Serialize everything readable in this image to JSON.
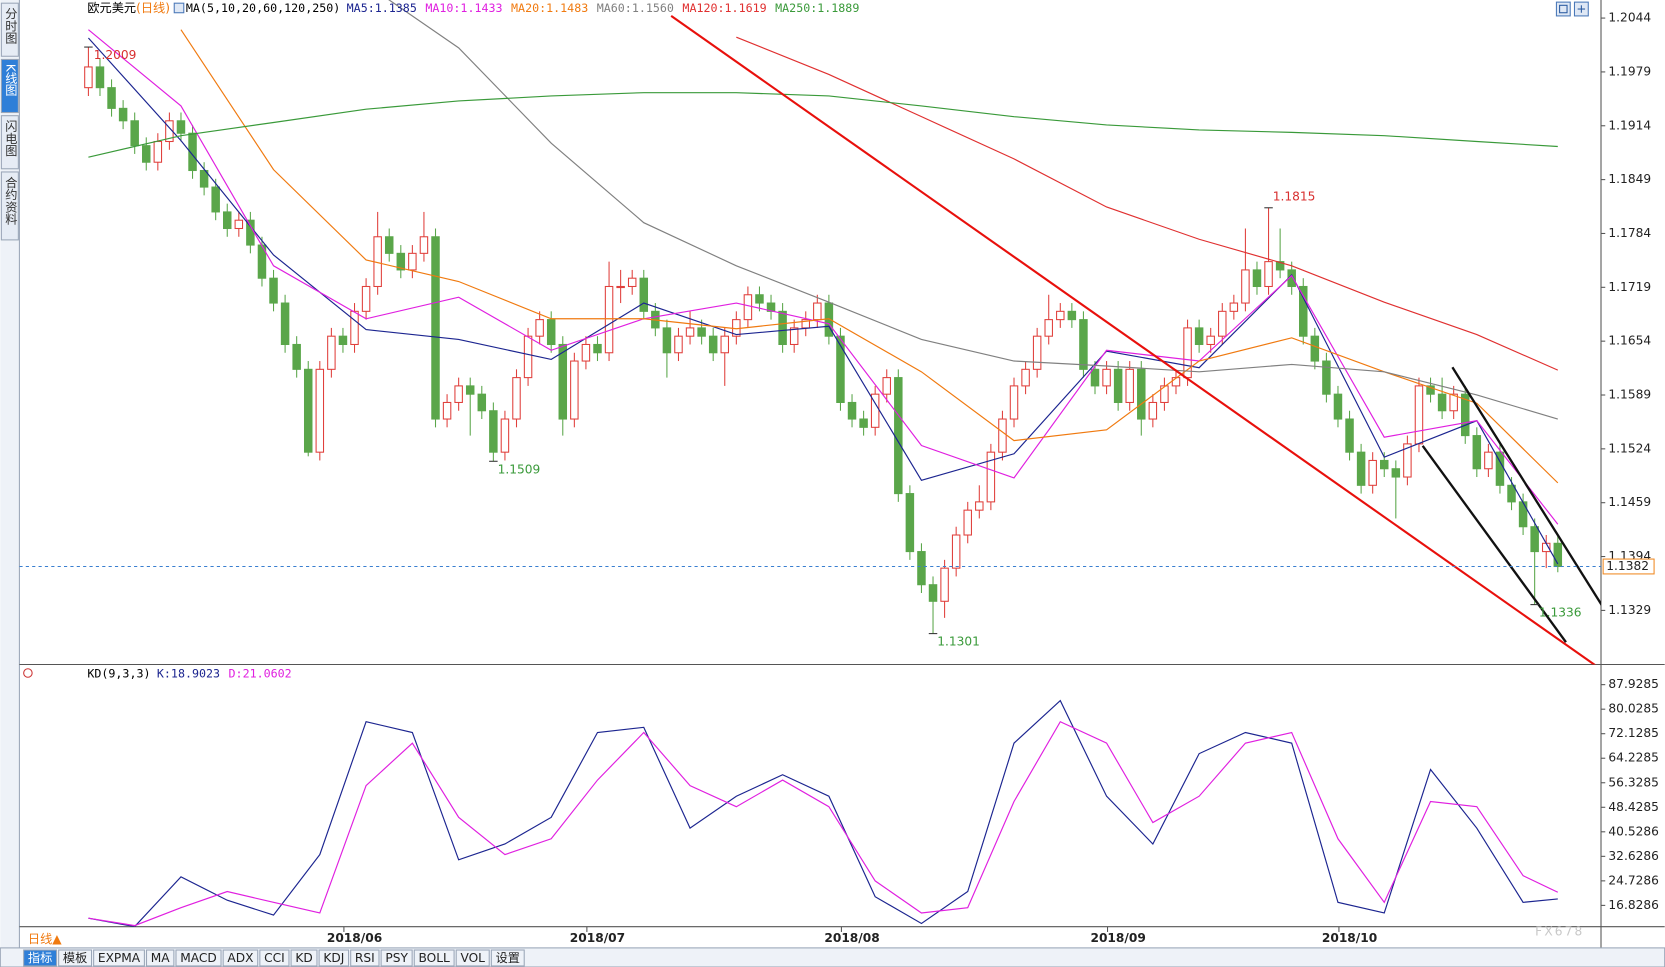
{
  "chart_data": {
    "type": "candlestick",
    "title": "欧元美元",
    "period": "(日线)",
    "ma_label": "MA(5,10,20,60,120,250)",
    "up_color": "#e0403c",
    "down_color": "#5aa64a",
    "ylim": [
      1.1265,
      1.2053
    ],
    "yticks": [
      1.2044,
      1.1979,
      1.1914,
      1.1849,
      1.1784,
      1.1719,
      1.1654,
      1.1589,
      1.1524,
      1.1459,
      1.1394,
      1.1329
    ],
    "categories": [
      null,
      null,
      null,
      null,
      null,
      null,
      null,
      null,
      null,
      null,
      null,
      null,
      null,
      null,
      null,
      null,
      null,
      null,
      null,
      null,
      null,
      null,
      null,
      "2018/06",
      null,
      null,
      null,
      null,
      null,
      null,
      null,
      null,
      null,
      null,
      null,
      null,
      null,
      null,
      null,
      null,
      null,
      null,
      null,
      null,
      "2018/07",
      null,
      null,
      null,
      null,
      null,
      null,
      null,
      null,
      null,
      null,
      null,
      null,
      null,
      null,
      null,
      null,
      null,
      null,
      null,
      null,
      null,
      "2018/08",
      null,
      null,
      null,
      null,
      null,
      null,
      null,
      null,
      null,
      null,
      null,
      null,
      null,
      null,
      null,
      null,
      null,
      null,
      null,
      null,
      null,
      null,
      "2018/09",
      null,
      null,
      null,
      null,
      null,
      null,
      null,
      null,
      null,
      null,
      null,
      null,
      null,
      null,
      null,
      null,
      null,
      null,
      null,
      "2018/10",
      null,
      null,
      null,
      null,
      null,
      null,
      null,
      null,
      null,
      null,
      null,
      null,
      null,
      null,
      null,
      null,
      null,
      null
    ],
    "open": [
      1.196,
      1.1985,
      1.196,
      1.1935,
      1.192,
      1.189,
      1.187,
      1.1895,
      1.192,
      1.1905,
      1.186,
      1.184,
      1.181,
      1.179,
      1.18,
      1.177,
      1.173,
      1.17,
      1.165,
      1.162,
      1.152,
      1.162,
      1.166,
      1.165,
      1.169,
      1.172,
      1.178,
      1.176,
      1.174,
      1.176,
      1.178,
      1.156,
      1.158,
      1.16,
      1.159,
      1.157,
      1.152,
      1.156,
      1.161,
      1.166,
      1.168,
      1.165,
      1.156,
      1.163,
      1.165,
      1.164,
      1.172,
      1.172,
      1.173,
      1.169,
      1.167,
      1.164,
      1.166,
      1.167,
      1.166,
      1.164,
      1.166,
      1.168,
      1.171,
      1.17,
      1.169,
      1.165,
      1.167,
      1.168,
      1.17,
      1.166,
      1.158,
      1.156,
      1.155,
      1.159,
      1.161,
      1.147,
      1.14,
      1.136,
      1.134,
      1.138,
      1.142,
      1.145,
      1.146,
      1.152,
      1.156,
      1.16,
      1.162,
      1.166,
      1.168,
      1.169,
      1.168,
      1.162,
      1.16,
      1.162,
      1.158,
      1.162,
      1.156,
      1.158,
      1.16,
      1.161,
      1.167,
      1.165,
      1.166,
      1.169,
      1.17,
      1.174,
      1.172,
      1.175,
      1.174,
      1.172,
      1.166,
      1.163,
      1.159,
      1.156,
      1.152,
      1.148,
      1.151,
      1.15,
      1.149,
      1.153,
      1.16,
      1.159,
      1.157,
      1.159,
      1.154,
      1.15,
      1.152,
      1.148,
      1.146,
      1.143,
      1.14,
      1.141
    ],
    "high": [
      1.2009,
      1.1995,
      1.197,
      1.1945,
      1.193,
      1.19,
      1.1905,
      1.193,
      1.193,
      1.1915,
      1.187,
      1.185,
      1.182,
      1.181,
      1.181,
      1.178,
      1.174,
      1.171,
      1.166,
      1.163,
      1.163,
      1.167,
      1.167,
      1.17,
      1.173,
      1.181,
      1.179,
      1.177,
      1.177,
      1.181,
      1.179,
      1.159,
      1.161,
      1.161,
      1.16,
      1.158,
      1.157,
      1.162,
      1.167,
      1.169,
      1.169,
      1.166,
      1.164,
      1.166,
      1.166,
      1.175,
      1.174,
      1.174,
      1.174,
      1.17,
      1.168,
      1.167,
      1.169,
      1.168,
      1.167,
      1.167,
      1.169,
      1.172,
      1.172,
      1.171,
      1.17,
      1.168,
      1.169,
      1.171,
      1.171,
      1.167,
      1.159,
      1.157,
      1.16,
      1.162,
      1.162,
      1.148,
      1.141,
      1.137,
      1.139,
      1.143,
      1.146,
      1.148,
      1.153,
      1.157,
      1.161,
      1.163,
      1.167,
      1.171,
      1.17,
      1.17,
      1.169,
      1.163,
      1.163,
      1.163,
      1.163,
      1.163,
      1.159,
      1.161,
      1.162,
      1.168,
      1.168,
      1.167,
      1.17,
      1.171,
      1.179,
      1.175,
      1.1815,
      1.179,
      1.175,
      1.173,
      1.167,
      1.164,
      1.16,
      1.157,
      1.153,
      1.152,
      1.152,
      1.151,
      1.154,
      1.161,
      1.161,
      1.161,
      1.16,
      1.16,
      1.155,
      1.153,
      1.153,
      1.149,
      1.147,
      1.144,
      1.142,
      1.142
    ],
    "low": [
      1.195,
      1.195,
      1.1925,
      1.191,
      1.188,
      1.186,
      1.186,
      1.1885,
      1.1895,
      1.185,
      1.183,
      1.18,
      1.178,
      1.178,
      1.176,
      1.172,
      1.169,
      1.164,
      1.161,
      1.1515,
      1.151,
      1.161,
      1.164,
      1.164,
      1.168,
      1.171,
      1.175,
      1.173,
      1.173,
      1.175,
      1.155,
      1.155,
      1.157,
      1.154,
      1.156,
      1.1509,
      1.151,
      1.155,
      1.16,
      1.165,
      1.164,
      1.154,
      1.155,
      1.162,
      1.163,
      1.163,
      1.17,
      1.171,
      1.168,
      1.166,
      1.161,
      1.163,
      1.165,
      1.165,
      1.163,
      1.16,
      1.165,
      1.167,
      1.169,
      1.168,
      1.164,
      1.164,
      1.166,
      1.167,
      1.165,
      1.157,
      1.155,
      1.154,
      1.154,
      1.158,
      1.146,
      1.139,
      1.135,
      1.1301,
      1.132,
      1.137,
      1.141,
      1.144,
      1.145,
      1.151,
      1.155,
      1.159,
      1.161,
      1.165,
      1.167,
      1.167,
      1.161,
      1.159,
      1.159,
      1.157,
      1.157,
      1.154,
      1.155,
      1.157,
      1.159,
      1.16,
      1.164,
      1.164,
      1.165,
      1.168,
      1.169,
      1.171,
      1.171,
      1.173,
      1.171,
      1.165,
      1.162,
      1.158,
      1.155,
      1.151,
      1.147,
      1.147,
      1.149,
      1.144,
      1.148,
      1.152,
      1.158,
      1.156,
      1.156,
      1.153,
      1.149,
      1.149,
      1.147,
      1.145,
      1.142,
      1.1336,
      1.138,
      1.1375
    ],
    "close": [
      1.1985,
      1.196,
      1.1935,
      1.192,
      1.189,
      1.187,
      1.1895,
      1.192,
      1.1905,
      1.186,
      1.184,
      1.181,
      1.179,
      1.18,
      1.177,
      1.173,
      1.17,
      1.165,
      1.162,
      1.152,
      1.162,
      1.166,
      1.165,
      1.169,
      1.172,
      1.178,
      1.176,
      1.174,
      1.176,
      1.178,
      1.156,
      1.158,
      1.16,
      1.159,
      1.157,
      1.152,
      1.156,
      1.161,
      1.166,
      1.168,
      1.165,
      1.156,
      1.163,
      1.165,
      1.164,
      1.172,
      1.172,
      1.173,
      1.169,
      1.167,
      1.164,
      1.166,
      1.167,
      1.166,
      1.164,
      1.166,
      1.168,
      1.171,
      1.17,
      1.169,
      1.165,
      1.167,
      1.168,
      1.17,
      1.166,
      1.158,
      1.156,
      1.155,
      1.159,
      1.161,
      1.147,
      1.14,
      1.136,
      1.134,
      1.138,
      1.142,
      1.145,
      1.146,
      1.152,
      1.156,
      1.16,
      1.162,
      1.166,
      1.168,
      1.169,
      1.168,
      1.162,
      1.16,
      1.162,
      1.158,
      1.162,
      1.156,
      1.158,
      1.16,
      1.161,
      1.167,
      1.165,
      1.166,
      1.169,
      1.17,
      1.174,
      1.172,
      1.175,
      1.174,
      1.172,
      1.166,
      1.163,
      1.159,
      1.156,
      1.152,
      1.148,
      1.151,
      1.15,
      1.149,
      1.153,
      1.16,
      1.159,
      1.157,
      1.159,
      1.154,
      1.15,
      1.152,
      1.148,
      1.146,
      1.143,
      1.14,
      1.141,
      1.1382
    ],
    "annotations": [
      1.2009,
      1.1509,
      1.1301,
      1.1815,
      1.1336
    ],
    "ma_x": [
      0,
      8,
      16,
      24,
      32,
      40,
      48,
      56,
      64,
      72,
      80,
      88,
      96,
      104,
      112,
      120,
      127
    ],
    "ma_series": [
      {
        "label": "MA5:1.1385",
        "color": "#1c2590",
        "values": [
          1.202,
          1.1896,
          1.1758,
          1.1668,
          1.1656,
          1.1632,
          1.17,
          1.1662,
          1.1672,
          1.1486,
          1.1518,
          1.1642,
          1.1622,
          1.1734,
          1.1514,
          1.1558,
          1.1385
        ]
      },
      {
        "label": "MA10:1.1433",
        "color": "#e020e0",
        "values": [
          1.203,
          1.1938,
          1.1745,
          1.1681,
          1.1707,
          1.1643,
          1.1681,
          1.17,
          1.1675,
          1.1528,
          1.1489,
          1.1643,
          1.163,
          1.1733,
          1.1538,
          1.1558,
          1.1433
        ]
      },
      {
        "label": "MA20:1.1483",
        "color": "#f07a10",
        "values": [
          null,
          1.203,
          1.1861,
          1.1752,
          1.1726,
          1.1681,
          1.1681,
          1.1669,
          1.1681,
          1.1617,
          1.1534,
          1.1547,
          1.163,
          1.1658,
          1.1617,
          1.1579,
          1.1483
        ]
      },
      {
        "label": "MA60:1.1560",
        "color": "#808080",
        "values": [
          null,
          null,
          null,
          1.2085,
          1.2008,
          1.1893,
          1.1797,
          1.1745,
          1.1701,
          1.1656,
          1.163,
          1.1624,
          1.1617,
          1.1626,
          1.1617,
          1.1589,
          1.156
        ]
      },
      {
        "label": "MA120:1.1619",
        "color": "#e03030",
        "values": [
          null,
          null,
          null,
          null,
          null,
          null,
          null,
          1.2021,
          1.1976,
          1.1925,
          1.1874,
          1.1816,
          1.1777,
          1.1745,
          1.1701,
          1.1662,
          1.1619
        ]
      },
      {
        "label": "MA250:1.1889",
        "color": "#3a9a3a",
        "values": [
          1.1876,
          1.1902,
          1.1918,
          1.1934,
          1.1944,
          1.195,
          1.1954,
          1.1954,
          1.195,
          1.1938,
          1.1925,
          1.1915,
          1.1909,
          1.1906,
          1.1902,
          1.1895,
          1.1889
        ]
      }
    ],
    "kd": {
      "type": "line",
      "label": "KD(9,3,3)",
      "x": [
        0,
        4,
        8,
        12,
        16,
        20,
        24,
        28,
        32,
        36,
        40,
        44,
        48,
        52,
        56,
        60,
        64,
        68,
        72,
        76,
        80,
        84,
        88,
        92,
        96,
        100,
        104,
        108,
        112,
        116,
        120,
        124,
        127
      ],
      "ylim": [
        11.0,
        93.06
      ],
      "yticks": [
        87.9285,
        80.0285,
        72.1285,
        64.2285,
        56.3285,
        48.4285,
        40.5286,
        32.6286,
        24.7286,
        16.8286
      ],
      "series": [
        {
          "label": "K:18.9023",
          "color": "#1c2590",
          "values": [
            12.7,
            10.0,
            26.0,
            18.5,
            13.7,
            33.2,
            76.0,
            72.5,
            31.5,
            36.6,
            45.2,
            72.5,
            74.2,
            41.7,
            52.0,
            58.9,
            52.0,
            19.6,
            11.0,
            21.3,
            69.1,
            82.8,
            52.0,
            36.6,
            65.7,
            72.5,
            69.1,
            17.8,
            14.4,
            60.6,
            41.7,
            17.8,
            18.9023
          ]
        },
        {
          "label": "D:21.0602",
          "color": "#e020e0",
          "values": [
            12.7,
            10.3,
            16.1,
            21.3,
            17.8,
            14.4,
            55.4,
            69.1,
            45.2,
            33.2,
            38.3,
            57.2,
            72.5,
            55.4,
            48.6,
            57.2,
            48.6,
            24.7,
            14.4,
            16.1,
            50.3,
            76.0,
            69.1,
            43.5,
            52.0,
            69.1,
            72.5,
            38.3,
            17.8,
            50.3,
            48.6,
            26.4,
            21.0602
          ]
        }
      ]
    }
  },
  "sidebar_tabs": [
    "分时图",
    "K线图",
    "闪电图",
    "合约资料"
  ],
  "period_button": "日线▲",
  "toolbar": [
    "指标",
    "模板",
    "EXPMA",
    "MA",
    "MACD",
    "ADX",
    "CCI",
    "KD",
    "KDJ",
    "RSI",
    "PSY",
    "BOLL",
    "VOL",
    "设置"
  ],
  "watermark": "FX678"
}
